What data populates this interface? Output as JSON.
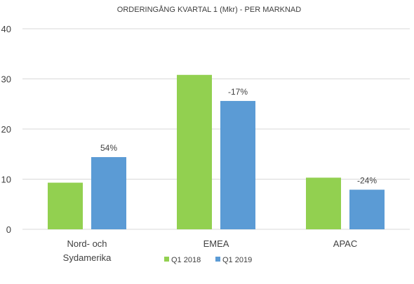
{
  "chart_data": {
    "type": "bar",
    "title": "ORDERINGÅNG  KVARTAL  1 (Mkr) - PER MARKNAD",
    "categories": [
      [
        "Nord- och",
        "Sydamerika"
      ],
      [
        "EMEA"
      ],
      [
        "APAC"
      ]
    ],
    "series": [
      {
        "name": "Q1 2018",
        "color": "#92d050",
        "values": [
          9.3,
          30.8,
          10.3
        ]
      },
      {
        "name": "Q1 2019",
        "color": "#5b9bd5",
        "values": [
          14.4,
          25.6,
          7.9
        ]
      }
    ],
    "data_labels": [
      "54%",
      "-17%",
      "-24%"
    ],
    "ylim": [
      0,
      40
    ],
    "yticks": [
      0,
      10,
      20,
      30,
      40
    ],
    "grid": true,
    "legend_position": "bottom"
  }
}
